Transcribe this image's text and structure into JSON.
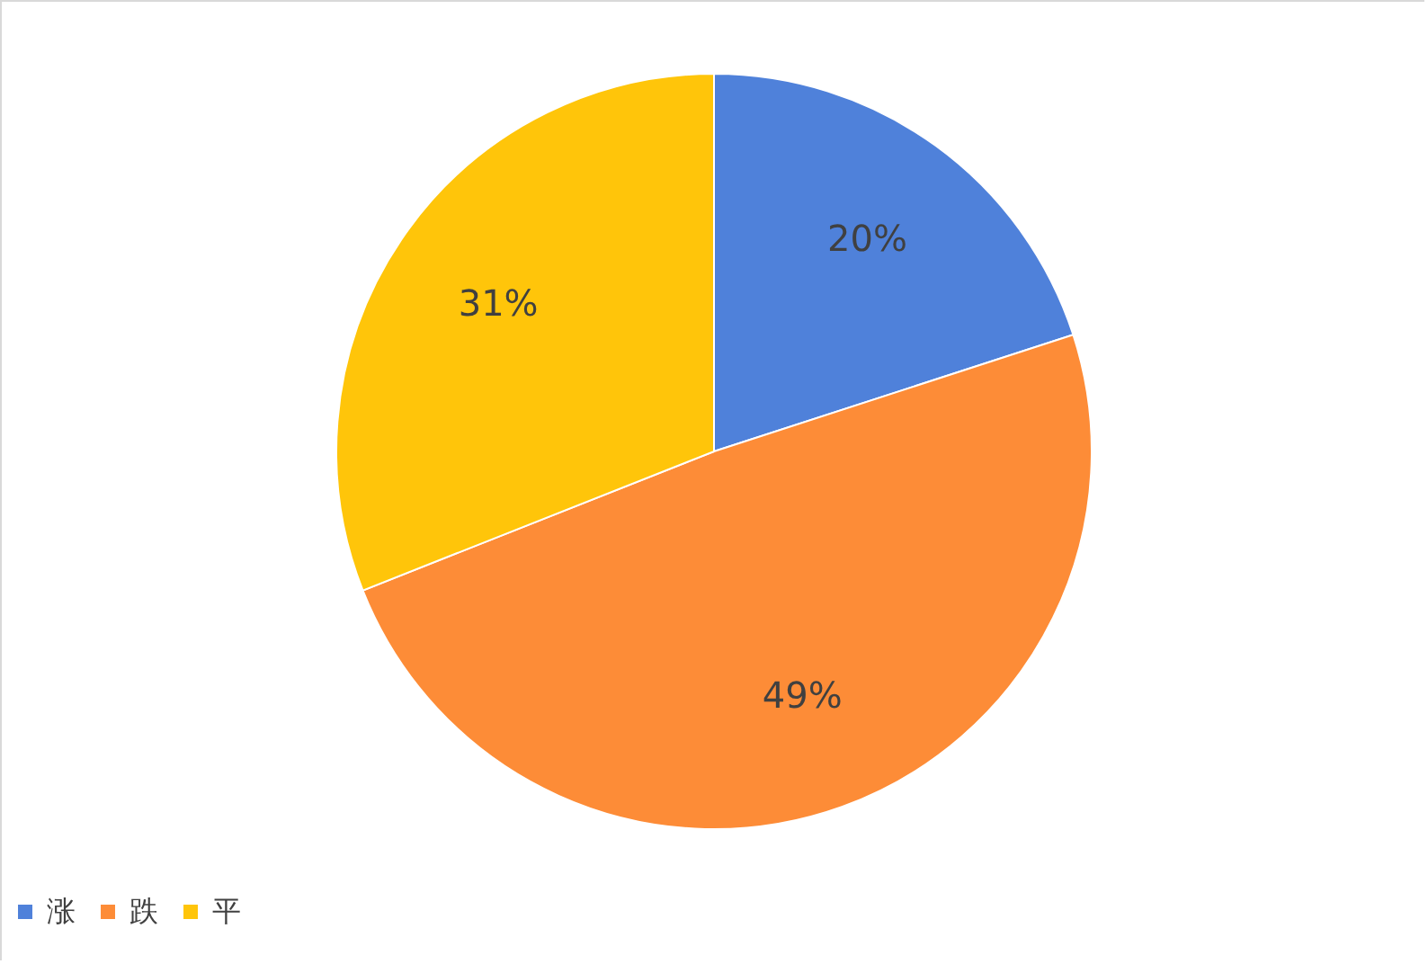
{
  "chart_data": {
    "type": "pie",
    "categories": [
      "涨",
      "跌",
      "平"
    ],
    "values": [
      20,
      49,
      31
    ],
    "value_labels": [
      "20%",
      "49%",
      "31%"
    ],
    "colors": [
      "#4f81da",
      "#fd8c37",
      "#ffc50a"
    ],
    "legend": "bottom"
  }
}
